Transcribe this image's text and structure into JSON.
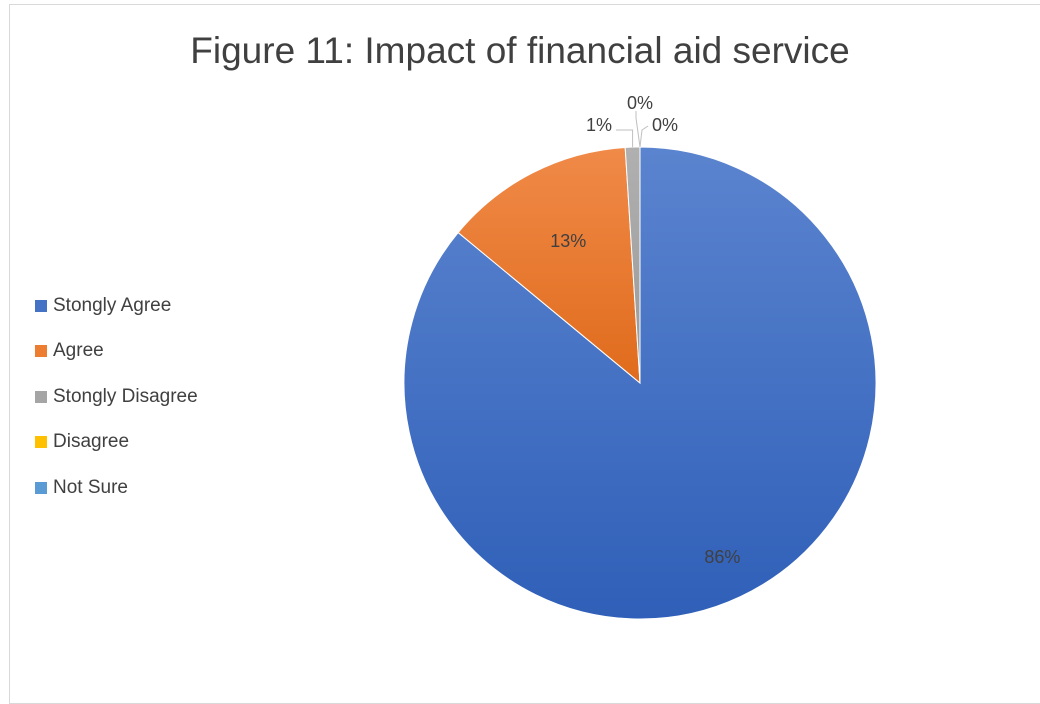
{
  "chart_data": {
    "type": "pie",
    "title": "Figure 11: Impact of financial aid service",
    "legend_position": "left",
    "slices": [
      {
        "label": "Stongly Agree",
        "value": 86,
        "data_label": "86%",
        "color": "#4472c4"
      },
      {
        "label": "Agree",
        "value": 13,
        "data_label": "13%",
        "color": "#ed7d31"
      },
      {
        "label": "Stongly Disagree",
        "value": 1,
        "data_label": "1%",
        "color": "#a5a5a5"
      },
      {
        "label": "Disagree",
        "value": 0,
        "data_label": "0%",
        "color": "#ffc000"
      },
      {
        "label": "Not Sure",
        "value": 0,
        "data_label": "0%",
        "color": "#5b9bd5"
      }
    ]
  }
}
